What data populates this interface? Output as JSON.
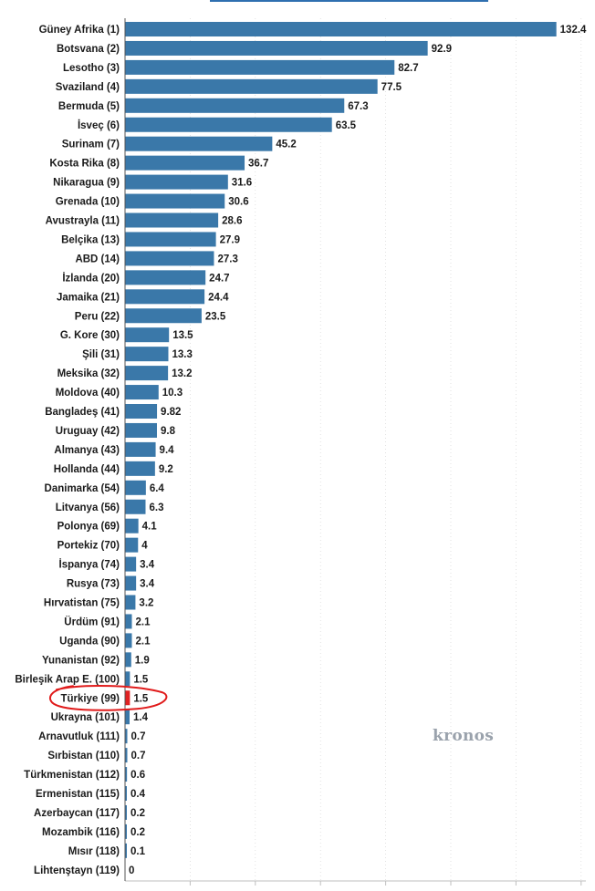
{
  "watermark": "kronos",
  "colors": {
    "bar": "#3a78a9",
    "highlight_bar": "#e02222",
    "annotation_ellipse": "#e01b1b",
    "axis": "#555555",
    "gridline": "#d0d0d0",
    "label_text": "#1a1a1a"
  },
  "chart_data": {
    "type": "bar",
    "orientation": "horizontal",
    "title": "",
    "xlabel": "",
    "ylabel": "",
    "xlim": [
      0,
      140
    ],
    "grid": true,
    "legend": "none",
    "highlight_category": "Türkiye (99)",
    "categories": [
      "Güney Afrika (1)",
      "Botsvana (2)",
      "Lesotho (3)",
      "Svaziland (4)",
      "Bermuda (5)",
      "İsveç (6)",
      "Surinam (7)",
      "Kosta Rika (8)",
      "Nikaragua (9)",
      "Grenada (10)",
      "Avustrayla (11)",
      "Belçika (13)",
      "ABD (14)",
      "İzlanda (20)",
      "Jamaika (21)",
      "Peru (22)",
      "G. Kore (30)",
      "Şili (31)",
      "Meksika (32)",
      "Moldova (40)",
      "Bangladeş (41)",
      "Uruguay (42)",
      "Almanya (43)",
      "Hollanda (44)",
      "Danimarka (54)",
      "Litvanya (56)",
      "Polonya (69)",
      "Portekiz (70)",
      "İspanya (74)",
      "Rusya (73)",
      "Hırvatistan (75)",
      "Ürdüm (91)",
      "Uganda (90)",
      "Yunanistan (92)",
      "Birleşik Arap E. (100)",
      "Türkiye (99)",
      "Ukrayna (101)",
      "Arnavutluk (111)",
      "Sırbistan (110)",
      "Türkmenistan (112)",
      "Ermenistan (115)",
      "Azerbaycan (117)",
      "Mozambik (116)",
      "Mısır (118)",
      "Lihtenştayn (119)"
    ],
    "values": [
      132.4,
      92.9,
      82.7,
      77.5,
      67.3,
      63.5,
      45.2,
      36.7,
      31.6,
      30.6,
      28.6,
      27.9,
      27.3,
      24.7,
      24.4,
      23.5,
      13.5,
      13.3,
      13.2,
      10.3,
      9.82,
      9.8,
      9.4,
      9.2,
      6.4,
      6.3,
      4.1,
      4,
      3.4,
      3.4,
      3.2,
      2.1,
      2.1,
      1.9,
      1.5,
      1.5,
      1.4,
      0.7,
      0.7,
      0.6,
      0.4,
      0.2,
      0.2,
      0.1,
      0
    ],
    "value_labels": [
      "132.4",
      "92.9",
      "82.7",
      "77.5",
      "67.3",
      "63.5",
      "45.2",
      "36.7",
      "31.6",
      "30.6",
      "28.6",
      "27.9",
      "27.3",
      "24.7",
      "24.4",
      "23.5",
      "13.5",
      "13.3",
      "13.2",
      "10.3",
      "9.82",
      "9.8",
      "9.4",
      "9.2",
      "6.4",
      "6.3",
      "4.1",
      "4",
      "3.4",
      "3.4",
      "3.2",
      "2.1",
      "2.1",
      "1.9",
      "1.5",
      "1.5",
      "1.4",
      "0.7",
      "0.7",
      "0.6",
      "0.4",
      "0.2",
      "0.2",
      "0.1",
      "0"
    ]
  }
}
